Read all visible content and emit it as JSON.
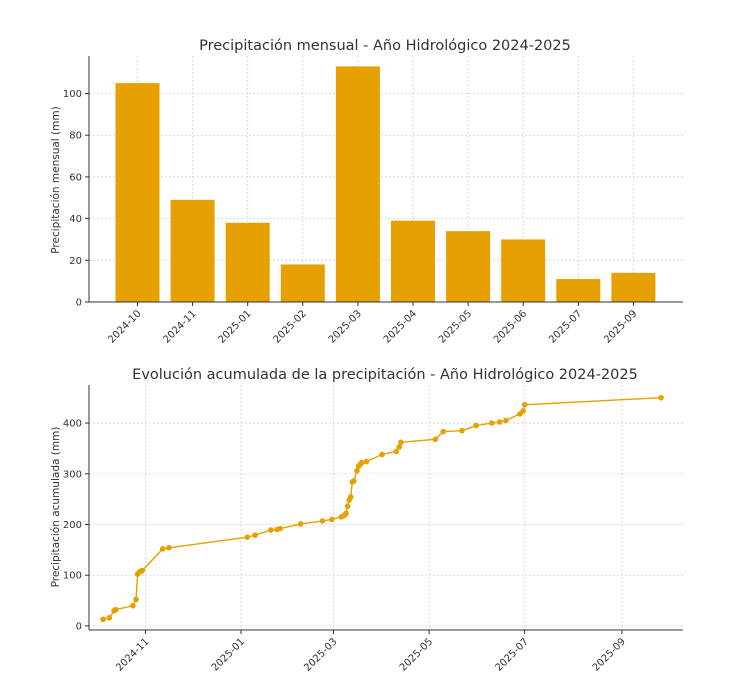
{
  "chart_data": [
    {
      "type": "bar",
      "title": "Precipitación mensual - Año Hidrológico 2024-2025",
      "xlabel": "",
      "ylabel": "Precipitación mensual (mm)",
      "categories": [
        "2024-10",
        "2024-11",
        "2025-01",
        "2025-02",
        "2025-03",
        "2025-04",
        "2025-05",
        "2025-06",
        "2025-07",
        "2025-09"
      ],
      "values": [
        105,
        49,
        38,
        18,
        113,
        39,
        34,
        30,
        11,
        14
      ],
      "ylim": [
        0,
        118
      ],
      "yticks": [
        0,
        20,
        40,
        60,
        80,
        100
      ],
      "grid": true,
      "color": "#E6A000"
    },
    {
      "type": "line",
      "title": "Evolución acumulada de la precipitación - Año Hidrológico 2024-2025",
      "xlabel": "",
      "ylabel": "Precipitación acumulada (mm)",
      "x": [
        "2024-10-05",
        "2024-10-09",
        "2024-10-12",
        "2024-10-13",
        "2024-10-24",
        "2024-10-26",
        "2024-10-27",
        "2024-10-28",
        "2024-10-29",
        "2024-10-30",
        "2024-11-12",
        "2024-11-16",
        "2025-01-05",
        "2025-01-10",
        "2025-01-20",
        "2025-01-24",
        "2025-01-26",
        "2025-02-08",
        "2025-02-22",
        "2025-02-28",
        "2025-03-06",
        "2025-03-08",
        "2025-03-09",
        "2025-03-10",
        "2025-03-11",
        "2025-03-12",
        "2025-03-13",
        "2025-03-14",
        "2025-03-16",
        "2025-03-17",
        "2025-03-18",
        "2025-03-19",
        "2025-03-22",
        "2025-04-01",
        "2025-04-10",
        "2025-04-12",
        "2025-04-13",
        "2025-05-05",
        "2025-05-10",
        "2025-05-22",
        "2025-05-31",
        "2025-06-10",
        "2025-06-15",
        "2025-06-19",
        "2025-06-28",
        "2025-06-30",
        "2025-07-01",
        "2025-09-26"
      ],
      "y": [
        13,
        16,
        30,
        32,
        40,
        52,
        102,
        106,
        108,
        109,
        152,
        154,
        175,
        179,
        189,
        190,
        192,
        201,
        207,
        210,
        215,
        218,
        222,
        236,
        248,
        254,
        284,
        286,
        306,
        315,
        318,
        322,
        324,
        338,
        344,
        353,
        362,
        368,
        383,
        385,
        395,
        400,
        402,
        405,
        418,
        424,
        436,
        450
      ],
      "xticks": [
        "2024-11",
        "2025-01",
        "2025-03",
        "2025-05",
        "2025-07",
        "2025-09"
      ],
      "xlim": [
        "2024-09-26",
        "2025-10-10"
      ],
      "ylim": [
        -8,
        475
      ],
      "yticks": [
        0,
        100,
        200,
        300,
        400
      ],
      "grid": true,
      "color": "#E6A000"
    }
  ]
}
